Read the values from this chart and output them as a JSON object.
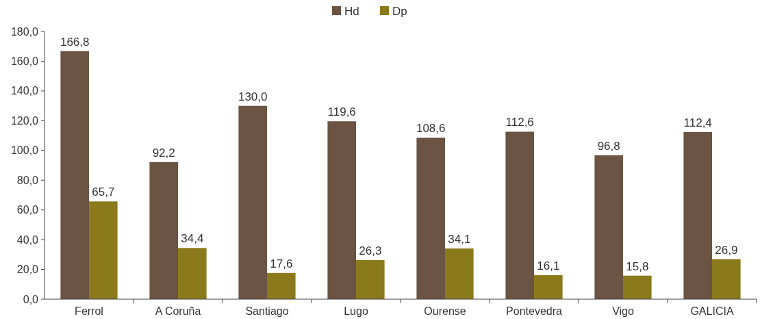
{
  "chart_data": {
    "type": "bar",
    "categories": [
      "Ferrol",
      "A Coruña",
      "Santiago",
      "Lugo",
      "Ourense",
      "Pontevedra",
      "Vigo",
      "GALICIA"
    ],
    "series": [
      {
        "name": "Hd",
        "color": "#6b5443",
        "values": [
          166.8,
          92.2,
          130.0,
          119.6,
          108.6,
          112.6,
          96.8,
          112.4
        ],
        "value_labels": [
          "166,8",
          "92,2",
          "130,0",
          "119,6",
          "108,6",
          "112,6",
          "96,8",
          "112,4"
        ]
      },
      {
        "name": "Dp",
        "color": "#8b7a1c",
        "values": [
          65.7,
          34.4,
          17.6,
          26.3,
          34.1,
          16.1,
          15.8,
          26.9
        ],
        "value_labels": [
          "65,7",
          "34,4",
          "17,6",
          "26,3",
          "34,1",
          "16,1",
          "15,8",
          "26,9"
        ]
      }
    ],
    "ylim": [
      0,
      180
    ],
    "yticks": [
      {
        "value": 0,
        "label": "0,0"
      },
      {
        "value": 20,
        "label": "20,0"
      },
      {
        "value": 40,
        "label": "40,0"
      },
      {
        "value": 60,
        "label": "60,0"
      },
      {
        "value": 80,
        "label": "80,0"
      },
      {
        "value": 100,
        "label": "100,0"
      },
      {
        "value": 120,
        "label": "120,0"
      },
      {
        "value": 140,
        "label": "140,0"
      },
      {
        "value": 160,
        "label": "160,0"
      },
      {
        "value": 180,
        "label": "180,0"
      }
    ],
    "grid": false,
    "legend": "top"
  }
}
